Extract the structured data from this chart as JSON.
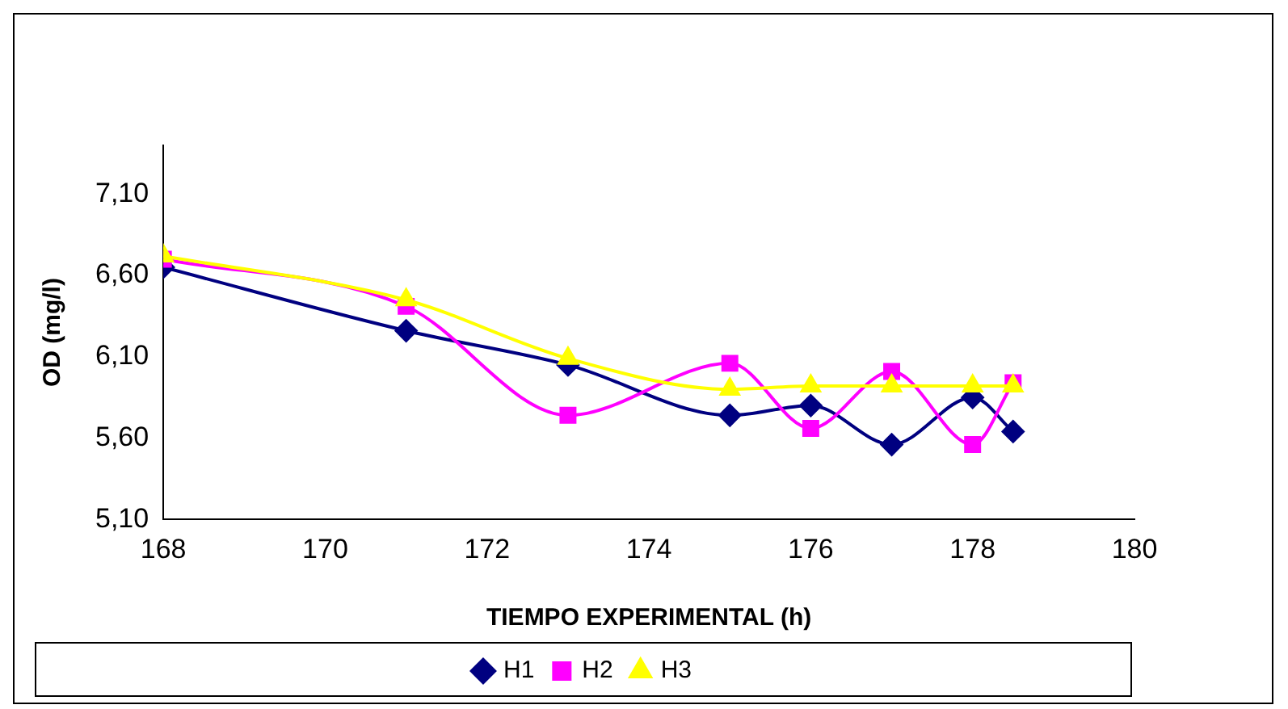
{
  "chart_data": {
    "type": "line",
    "xlabel": "TIEMPO EXPERIMENTAL (h)",
    "ylabel": "OD (mg/l)",
    "x": [
      168,
      171,
      173,
      175,
      176,
      177,
      178,
      178.5
    ],
    "series": [
      {
        "name": "H1",
        "color": "#000080",
        "marker": "diamond",
        "values": [
          6.65,
          6.26,
          6.05,
          5.74,
          5.8,
          5.56,
          5.85,
          5.64
        ]
      },
      {
        "name": "H2",
        "color": "#ff00ff",
        "marker": "square",
        "values": [
          6.7,
          6.41,
          5.74,
          6.06,
          5.66,
          6.01,
          5.56,
          5.94
        ]
      },
      {
        "name": "H3",
        "color": "#ffff00",
        "marker": "triangle",
        "values": [
          6.72,
          6.45,
          6.09,
          5.9,
          5.92,
          5.92,
          5.92,
          5.92
        ]
      }
    ],
    "xlim": [
      168,
      180
    ],
    "xticks": [
      168,
      170,
      172,
      174,
      176,
      178,
      180
    ],
    "ylim": [
      5.1,
      7.4
    ],
    "yticks": [
      {
        "value": 5.1,
        "label": "5,10"
      },
      {
        "value": 5.6,
        "label": "5,60"
      },
      {
        "value": 6.1,
        "label": "6,10"
      },
      {
        "value": 6.6,
        "label": "6,60"
      },
      {
        "value": 7.1,
        "label": "7,10"
      }
    ],
    "grid": false,
    "legend": "bottom"
  }
}
